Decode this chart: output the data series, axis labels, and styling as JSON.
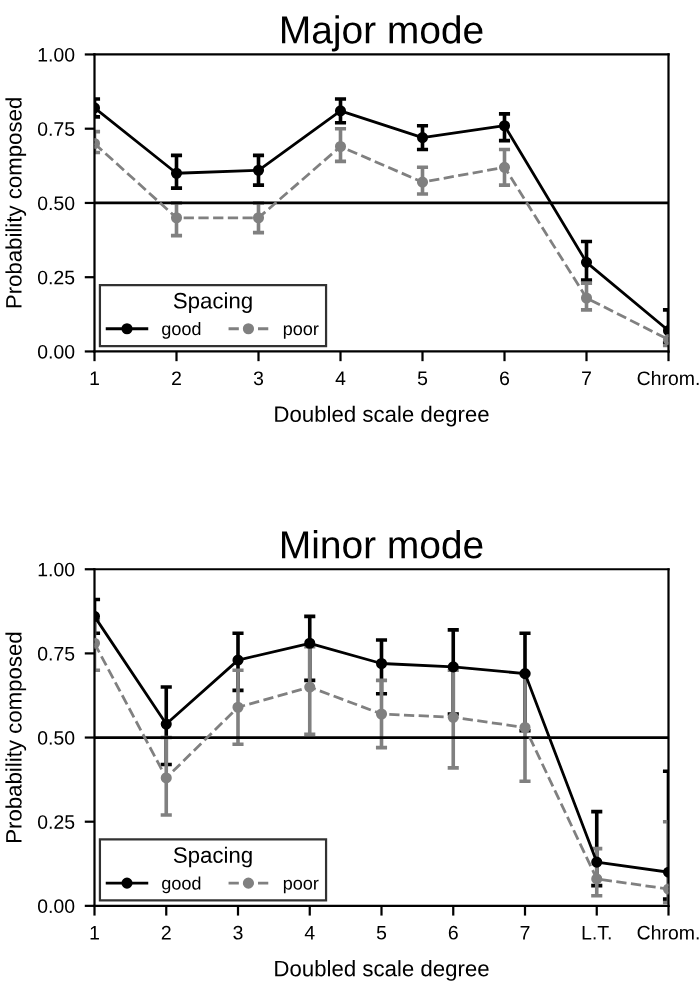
{
  "chart_data": [
    {
      "type": "line",
      "title": "Major mode",
      "xlabel": "Doubled scale degree",
      "ylabel": "Probability composed",
      "legend_title": "Spacing",
      "legend": "bottom left",
      "grid": false,
      "marker": "circle",
      "categories": [
        "1",
        "2",
        "3",
        "4",
        "5",
        "6",
        "7",
        "Chrom."
      ],
      "ylim": [
        0,
        1
      ],
      "yticks": [
        {
          "value": 0,
          "label": "0.00"
        },
        {
          "value": 0.25,
          "label": "0.25"
        },
        {
          "value": 0.5,
          "label": "0.50"
        },
        {
          "value": 0.75,
          "label": "0.75"
        },
        {
          "value": 1,
          "label": "1.00"
        }
      ],
      "ref_lines": [
        {
          "axis": "y",
          "value": 0.5,
          "color": "#000000"
        }
      ],
      "series": [
        {
          "name": "good",
          "color": "#000000",
          "line_style": "solid",
          "values": [
            0.82,
            0.6,
            0.61,
            0.81,
            0.72,
            0.76,
            0.3,
            0.07
          ],
          "errors": [
            [
              0.79,
              0.85
            ],
            [
              0.55,
              0.66
            ],
            [
              0.56,
              0.66
            ],
            [
              0.77,
              0.85
            ],
            [
              0.68,
              0.76
            ],
            [
              0.71,
              0.8
            ],
            [
              0.24,
              0.37
            ],
            [
              0.03,
              0.14
            ]
          ]
        },
        {
          "name": "poor",
          "color": "#808080",
          "line_style": "dashed",
          "values": [
            0.7,
            0.45,
            0.45,
            0.69,
            0.57,
            0.62,
            0.18,
            0.04
          ],
          "errors": [
            [
              0.67,
              0.74
            ],
            [
              0.39,
              0.5
            ],
            [
              0.4,
              0.5
            ],
            [
              0.64,
              0.75
            ],
            [
              0.53,
              0.62
            ],
            [
              0.56,
              0.68
            ],
            [
              0.14,
              0.23
            ],
            [
              0.02,
              0.08
            ]
          ]
        }
      ]
    },
    {
      "type": "line",
      "title": "Minor mode",
      "xlabel": "Doubled scale degree",
      "ylabel": "Probability composed",
      "legend_title": "Spacing",
      "legend": "bottom left",
      "grid": false,
      "marker": "circle",
      "categories": [
        "1",
        "2",
        "3",
        "4",
        "5",
        "6",
        "7",
        "L.T.",
        "Chrom."
      ],
      "ylim": [
        0,
        1
      ],
      "yticks": [
        {
          "value": 0,
          "label": "0.00"
        },
        {
          "value": 0.25,
          "label": "0.25"
        },
        {
          "value": 0.5,
          "label": "0.50"
        },
        {
          "value": 0.75,
          "label": "0.75"
        },
        {
          "value": 1,
          "label": "1.00"
        }
      ],
      "ref_lines": [
        {
          "axis": "y",
          "value": 0.5,
          "color": "#000000"
        }
      ],
      "series": [
        {
          "name": "good",
          "color": "#000000",
          "line_style": "solid",
          "values": [
            0.86,
            0.54,
            0.73,
            0.78,
            0.72,
            0.71,
            0.69,
            0.13,
            0.1
          ],
          "errors": [
            [
              0.81,
              0.91
            ],
            [
              0.42,
              0.65
            ],
            [
              0.64,
              0.81
            ],
            [
              0.67,
              0.86
            ],
            [
              0.63,
              0.79
            ],
            [
              0.57,
              0.82
            ],
            [
              0.52,
              0.81
            ],
            [
              0.06,
              0.28
            ],
            [
              0.02,
              0.4
            ]
          ]
        },
        {
          "name": "poor",
          "color": "#808080",
          "line_style": "dashed",
          "values": [
            0.78,
            0.38,
            0.59,
            0.65,
            0.57,
            0.56,
            0.53,
            0.08,
            0.05
          ],
          "errors": [
            [
              0.7,
              0.85
            ],
            [
              0.27,
              0.5
            ],
            [
              0.48,
              0.7
            ],
            [
              0.51,
              0.77
            ],
            [
              0.47,
              0.67
            ],
            [
              0.41,
              0.7
            ],
            [
              0.37,
              0.69
            ],
            [
              0.03,
              0.17
            ],
            [
              0.01,
              0.25
            ]
          ]
        }
      ]
    }
  ]
}
